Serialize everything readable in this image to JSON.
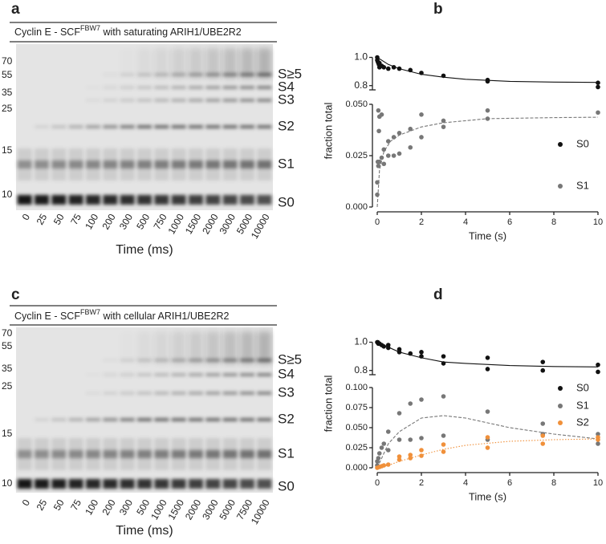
{
  "panel_letters": [
    "a",
    "b",
    "c",
    "d"
  ],
  "gels": [
    {
      "title_prefix": "Cyclin E - SCF",
      "title_superscript": "FBW7",
      "title_suffix": " with saturating ARIH1/UBE2R2",
      "markers": [
        70,
        55,
        35,
        25,
        15,
        10
      ],
      "species": [
        "S≥5",
        "S4",
        "S3",
        "S2",
        "S1",
        "S0"
      ],
      "lanes": [
        "0",
        "25",
        "50",
        "75",
        "100",
        "200",
        "300",
        "500",
        "750",
        "1000",
        "1500",
        "2000",
        "3000",
        "5000",
        "10000"
      ],
      "xlabel": "Time (ms)"
    },
    {
      "title_prefix": "Cyclin E - SCF",
      "title_superscript": "FBW7",
      "title_suffix": " with cellular ARIH1/UBE2R2",
      "markers": [
        70,
        55,
        35,
        25,
        15,
        10
      ],
      "species": [
        "S≥5",
        "S4",
        "S3",
        "S2",
        "S1",
        "S0"
      ],
      "lanes": [
        "0",
        "25",
        "50",
        "75",
        "100",
        "200",
        "300",
        "500",
        "1000",
        "1500",
        "2000",
        "3000",
        "5000",
        "7500",
        "10000"
      ],
      "xlabel": "Time (ms)"
    }
  ],
  "chart_data": [
    {
      "type": "scatter",
      "ylabel": "fraction total",
      "xlabel": "Time (s)",
      "xlim": [
        0,
        10
      ],
      "xticks": [
        0,
        2,
        4,
        6,
        8,
        10
      ],
      "ylim": [
        0,
        0.05
      ],
      "yticks": [
        {
          "value": 0,
          "label": "0.000"
        },
        {
          "value": 0.025,
          "label": "0.025"
        },
        {
          "value": 0.05,
          "label": "0.050"
        }
      ],
      "upper_ylim": [
        0.77,
        1.02
      ],
      "upper_yticks": [
        0.8,
        {
          "value": 1.0,
          "label": "1.0"
        }
      ],
      "series": [
        {
          "name": "S0",
          "color": "#111111",
          "axis": "upper",
          "x": [
            0,
            0,
            0.025,
            0.05,
            0.075,
            0.1,
            0.1,
            0.2,
            0.3,
            0.5,
            0.75,
            1,
            1.5,
            2,
            3,
            5,
            5,
            10,
            10
          ],
          "values": [
            1.0,
            0.98,
            0.97,
            0.96,
            0.95,
            0.96,
            0.93,
            0.94,
            0.93,
            0.92,
            0.93,
            0.92,
            0.91,
            0.89,
            0.87,
            0.84,
            0.83,
            0.82,
            0.79
          ]
        },
        {
          "name": "S1",
          "color": "#777777",
          "x": [
            0,
            0,
            0.025,
            0.05,
            0.05,
            0.075,
            0.1,
            0.1,
            0.2,
            0.2,
            0.3,
            0.3,
            0.5,
            0.5,
            0.75,
            0.75,
            1,
            1,
            1.5,
            1.5,
            2,
            2,
            3,
            3,
            5,
            5,
            10
          ],
          "values": [
            0.012,
            0.006,
            0.022,
            0.047,
            0.02,
            0.037,
            0.044,
            0.022,
            0.045,
            0.024,
            0.028,
            0.021,
            0.032,
            0.025,
            0.034,
            0.025,
            0.036,
            0.026,
            0.038,
            0.029,
            0.045,
            0.034,
            0.042,
            0.039,
            0.047,
            0.043,
            0.046
          ]
        }
      ],
      "fits": [
        {
          "color": "#111111",
          "dash": "none",
          "axis": "upper",
          "x": [
            0,
            0.5,
            1,
            2,
            3,
            4,
            6,
            8,
            10
          ],
          "values": [
            1.0,
            0.95,
            0.92,
            0.88,
            0.86,
            0.845,
            0.83,
            0.825,
            0.823
          ]
        },
        {
          "color": "#777777",
          "dash": "4 2",
          "x": [
            0,
            0.1,
            0.3,
            0.6,
            1,
            2,
            3,
            5,
            8,
            10
          ],
          "values": [
            0,
            0.018,
            0.027,
            0.032,
            0.035,
            0.039,
            0.041,
            0.043,
            0.0435,
            0.0437
          ]
        }
      ]
    },
    {
      "type": "scatter",
      "ylabel": "fraction total",
      "xlabel": "Time (s)",
      "xlim": [
        0,
        10
      ],
      "xticks": [
        0,
        2,
        4,
        6,
        8,
        10
      ],
      "ylim": [
        0,
        0.1
      ],
      "yticks": [
        {
          "value": 0,
          "label": "0.000"
        },
        {
          "value": 0.025,
          "label": "0.025"
        },
        {
          "value": 0.05,
          "label": "0.050"
        },
        {
          "value": 0.075,
          "label": "0.075"
        },
        {
          "value": 0.1,
          "label": "0.100"
        }
      ],
      "upper_ylim": [
        0.77,
        1.02
      ],
      "upper_yticks": [
        0.8,
        {
          "value": 1.0,
          "label": "1.0"
        }
      ],
      "series": [
        {
          "name": "S0",
          "color": "#111111",
          "axis": "upper",
          "x": [
            0,
            0.025,
            0.05,
            0.075,
            0.1,
            0.2,
            0.3,
            0.5,
            0.5,
            1,
            1,
            1.5,
            2,
            2,
            3,
            3,
            5,
            5,
            7.5,
            7.5,
            10,
            10
          ],
          "values": [
            1.0,
            1.0,
            0.99,
            0.99,
            0.99,
            0.98,
            0.97,
            0.96,
            0.98,
            0.93,
            0.95,
            0.92,
            0.93,
            0.9,
            0.9,
            0.85,
            0.89,
            0.81,
            0.86,
            0.8,
            0.84,
            0.79
          ]
        },
        {
          "name": "S1",
          "color": "#777777",
          "x": [
            0,
            0,
            0.05,
            0.1,
            0.2,
            0.3,
            0.5,
            0.5,
            1,
            1,
            1.5,
            1.5,
            2,
            2,
            3,
            3,
            5,
            5,
            7.5,
            7.5,
            10,
            10
          ],
          "values": [
            0.003,
            0.008,
            0.012,
            0.018,
            0.025,
            0.03,
            0.045,
            0.022,
            0.068,
            0.035,
            0.08,
            0.035,
            0.085,
            0.037,
            0.089,
            0.04,
            0.07,
            0.035,
            0.055,
            0.042,
            0.042,
            0.03
          ]
        },
        {
          "name": "S2",
          "color": "#f0903a",
          "x": [
            0,
            0.1,
            0.2,
            0.3,
            0.5,
            1,
            1,
            1.5,
            1.5,
            2,
            2,
            3,
            3,
            5,
            5,
            7.5,
            7.5,
            10,
            10
          ],
          "values": [
            0,
            0.001,
            0.002,
            0.003,
            0.004,
            0.01,
            0.014,
            0.012,
            0.016,
            0.015,
            0.022,
            0.02,
            0.029,
            0.025,
            0.038,
            0.03,
            0.04,
            0.035,
            0.038
          ]
        }
      ],
      "fits": [
        {
          "color": "#111111",
          "dash": "none",
          "axis": "upper",
          "x": [
            0,
            1,
            2,
            3,
            4,
            6,
            8,
            10
          ],
          "values": [
            1.0,
            0.93,
            0.89,
            0.86,
            0.85,
            0.835,
            0.828,
            0.825
          ]
        },
        {
          "color": "#777777",
          "dash": "4 2",
          "x": [
            0,
            0.5,
            1,
            2,
            3,
            4,
            5,
            6,
            8,
            10
          ],
          "values": [
            0,
            0.03,
            0.045,
            0.062,
            0.065,
            0.062,
            0.056,
            0.05,
            0.042,
            0.036
          ]
        },
        {
          "color": "#f0903a",
          "dash": "1.5 2",
          "x": [
            0,
            0.5,
            1,
            2,
            3,
            4,
            6,
            8,
            10
          ],
          "values": [
            0,
            0.003,
            0.008,
            0.016,
            0.023,
            0.028,
            0.033,
            0.035,
            0.036
          ]
        }
      ]
    }
  ]
}
